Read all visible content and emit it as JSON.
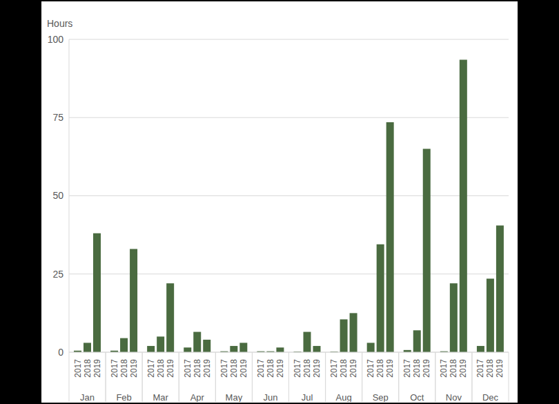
{
  "chart_data": {
    "type": "bar",
    "y_label": "Hours",
    "categories": [
      "Jan",
      "Feb",
      "Mar",
      "Apr",
      "May",
      "Jun",
      "Jul",
      "Aug",
      "Sep",
      "Oct",
      "Nov",
      "Dec"
    ],
    "series": [
      {
        "name": "2017",
        "color": "#4a6b40",
        "values": [
          0.5,
          0.5,
          2,
          1.5,
          0.3,
          0.3,
          0.2,
          0.2,
          3,
          0.7,
          0.3,
          2
        ]
      },
      {
        "name": "2018",
        "color": "#4a6b40",
        "values": [
          3,
          4.5,
          5,
          6.5,
          2,
          0.3,
          6.5,
          10.5,
          34.5,
          7,
          22,
          23.5
        ]
      },
      {
        "name": "2019",
        "color": "#4a6b40",
        "values": [
          38,
          33,
          22,
          4,
          3,
          1.5,
          2,
          12.5,
          73.5,
          65,
          93.5,
          40.5
        ]
      }
    ],
    "ylim": [
      0,
      100
    ],
    "yticks": [
      0,
      25,
      50,
      75,
      100
    ],
    "grid": true
  }
}
